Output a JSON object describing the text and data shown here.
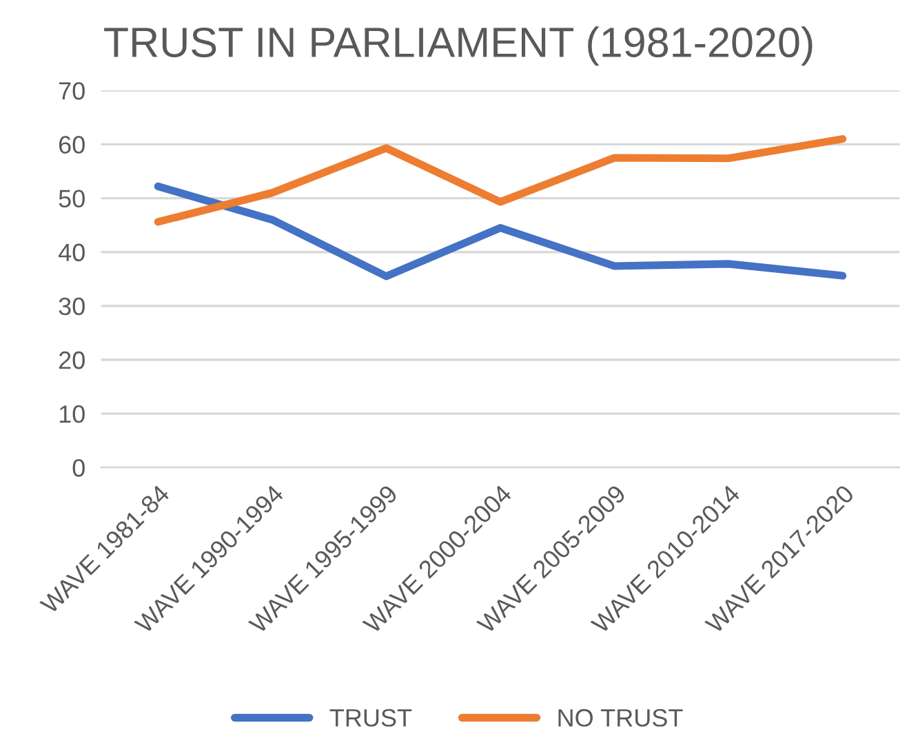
{
  "chart_data": {
    "type": "line",
    "title": "TRUST IN PARLIAMENT (1981-2020)",
    "categories": [
      "WAVE 1981-84",
      "WAVE 1990-1994",
      "WAVE 1995-1999",
      "WAVE 2000-2004",
      "WAVE 2005-2009",
      "WAVE 2010-2014",
      "WAVE 2017-2020"
    ],
    "series": [
      {
        "name": "TRUST",
        "color": "#4472c4",
        "values": [
          52.2,
          46.0,
          35.5,
          44.5,
          37.4,
          37.8,
          35.6
        ]
      },
      {
        "name": "NO TRUST",
        "color": "#ed7d31",
        "values": [
          45.6,
          51.0,
          59.3,
          49.3,
          57.5,
          57.4,
          61.0
        ]
      }
    ],
    "ylim": [
      0,
      70
    ],
    "yticks": [
      0,
      10,
      20,
      30,
      40,
      50,
      60,
      70
    ],
    "grid": "y",
    "legend": "bottom",
    "marker": "none",
    "line_style": "solid"
  }
}
